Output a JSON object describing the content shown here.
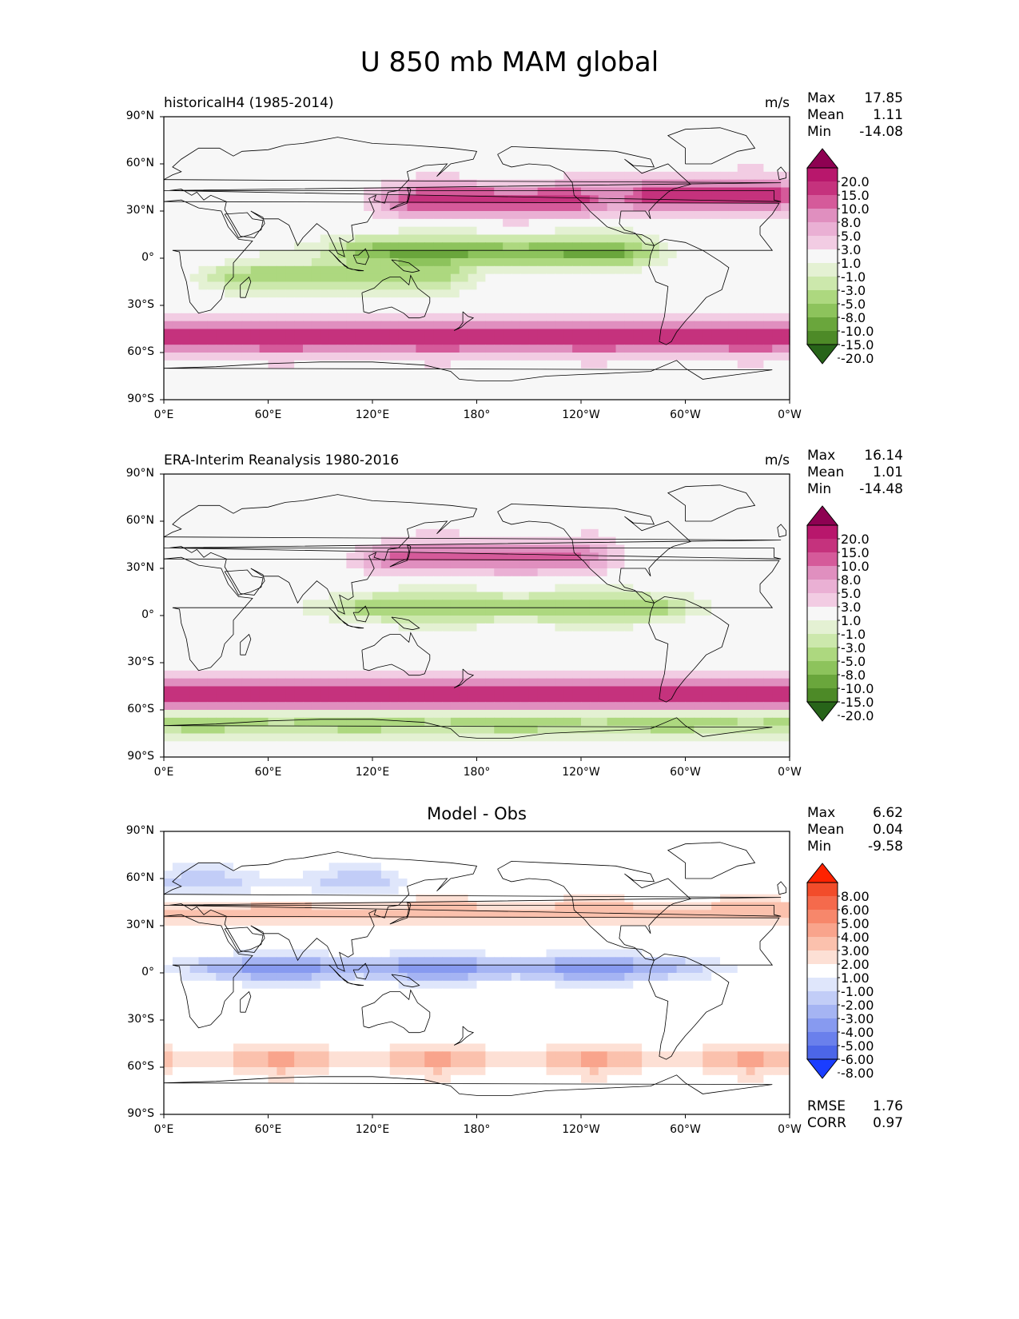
{
  "figure": {
    "title": "U 850 mb MAM global"
  },
  "panels": [
    {
      "id": "model",
      "left_title": "historicalH4 (1985-2014)",
      "center_title": "",
      "units": "m/s",
      "stats": [
        {
          "label": "Max",
          "value": "17.85"
        },
        {
          "label": "Mean",
          "value": "1.11"
        },
        {
          "label": "Min",
          "value": "-14.08"
        }
      ],
      "extra_stats": [],
      "colorbar": {
        "type": "sequential-diverging",
        "levels": [
          "20.0",
          "15.0",
          "10.0",
          "8.0",
          "5.0",
          "3.0",
          "1.0",
          "-1.0",
          "-3.0",
          "-5.0",
          "-8.0",
          "-10.0",
          "-15.0",
          "-20.0"
        ],
        "colors": [
          "#8e0152",
          "#b8176c",
          "#c5327d",
          "#d55a9a",
          "#e08fbf",
          "#eab0d4",
          "#f2cce3",
          "#f7f7f7",
          "#e4f1d3",
          "#cce8ac",
          "#add87f",
          "#8dc35c",
          "#6aa63c",
          "#4d8a27",
          "#276419"
        ]
      }
    },
    {
      "id": "obs",
      "left_title": "ERA-Interim Reanalysis 1980-2016",
      "center_title": "",
      "units": "m/s",
      "stats": [
        {
          "label": "Max",
          "value": "16.14"
        },
        {
          "label": "Mean",
          "value": "1.01"
        },
        {
          "label": "Min",
          "value": "-14.48"
        }
      ],
      "extra_stats": [],
      "colorbar": {
        "type": "sequential-diverging",
        "levels": [
          "20.0",
          "15.0",
          "10.0",
          "8.0",
          "5.0",
          "3.0",
          "1.0",
          "-1.0",
          "-3.0",
          "-5.0",
          "-8.0",
          "-10.0",
          "-15.0",
          "-20.0"
        ],
        "colors": [
          "#8e0152",
          "#b8176c",
          "#c5327d",
          "#d55a9a",
          "#e08fbf",
          "#eab0d4",
          "#f2cce3",
          "#f7f7f7",
          "#e4f1d3",
          "#cce8ac",
          "#add87f",
          "#8dc35c",
          "#6aa63c",
          "#4d8a27",
          "#276419"
        ]
      }
    },
    {
      "id": "diff",
      "left_title": "",
      "center_title": "Model - Obs",
      "units": "",
      "stats": [
        {
          "label": "Max",
          "value": "6.62"
        },
        {
          "label": "Mean",
          "value": "0.04"
        },
        {
          "label": "Min",
          "value": "-9.58"
        }
      ],
      "extra_stats": [
        {
          "label": "RMSE",
          "value": "1.76"
        },
        {
          "label": "CORR",
          "value": "0.97"
        }
      ],
      "colorbar": {
        "type": "diverging",
        "levels": [
          "8.00",
          "6.00",
          "5.00",
          "4.00",
          "3.00",
          "2.00",
          "1.00",
          "-1.00",
          "-2.00",
          "-3.00",
          "-4.00",
          "-5.00",
          "-6.00",
          "-8.00"
        ],
        "colors": [
          "#ff2200",
          "#f24c2a",
          "#f56a4c",
          "#f7876b",
          "#f9a48c",
          "#fbc1ad",
          "#fde0d5",
          "#ffffff",
          "#dfe6fb",
          "#c2cdf7",
          "#a5b4f3",
          "#879af0",
          "#6a80ec",
          "#4c66e8",
          "#1a3dff"
        ]
      }
    }
  ],
  "axes": {
    "y_ticks": [
      "90°N",
      "60°N",
      "30°N",
      "0°",
      "30°S",
      "60°S",
      "90°S"
    ],
    "x_ticks": [
      "0°E",
      "60°E",
      "120°E",
      "180°",
      "120°W",
      "60°W",
      "0°W"
    ]
  },
  "chart_data": [
    {
      "type": "heatmap",
      "title": "historicalH4 (1985-2014)",
      "variable": "U 850 mb MAM",
      "units": "m/s",
      "x_range_deg_east": [
        0,
        360
      ],
      "y_range_deg_lat": [
        -90,
        90
      ],
      "max": 17.85,
      "mean": 1.11,
      "min": -14.08,
      "contour_levels": [
        -20,
        -15,
        -10,
        -8,
        -5,
        -3,
        -1,
        1,
        3,
        5,
        8,
        10,
        15,
        20
      ],
      "features": [
        {
          "name": "southern westerly jet",
          "lat_center": -50,
          "lon_range": [
            0,
            360
          ],
          "value": 15
        },
        {
          "name": "north pacific jet",
          "lat_center": 37,
          "lon_range": [
            150,
            230
          ],
          "value": 12
        },
        {
          "name": "north atlantic jet",
          "lat_center": 40,
          "lon_range": [
            285,
            345
          ],
          "value": 12
        },
        {
          "name": "tropical easterlies pacific",
          "lat_center": 4,
          "lon_range": [
            120,
            260
          ],
          "value": -10
        },
        {
          "name": "southern indian easterlies",
          "lat_center": -12,
          "lon_range": [
            45,
            150
          ],
          "value": -6
        }
      ]
    },
    {
      "type": "heatmap",
      "title": "ERA-Interim Reanalysis 1980-2016",
      "variable": "U 850 mb MAM",
      "units": "m/s",
      "x_range_deg_east": [
        0,
        360
      ],
      "y_range_deg_lat": [
        -90,
        90
      ],
      "max": 16.14,
      "mean": 1.01,
      "min": -14.48,
      "contour_levels": [
        -20,
        -15,
        -10,
        -8,
        -5,
        -3,
        -1,
        1,
        3,
        5,
        8,
        10,
        15,
        20
      ],
      "features": [
        {
          "name": "southern westerly jet",
          "lat_center": -50,
          "lon_range": [
            0,
            360
          ],
          "value": 15
        },
        {
          "name": "north pacific jet",
          "lat_center": 37,
          "lon_range": [
            140,
            230
          ],
          "value": 9
        },
        {
          "name": "tropical easterlies pacific",
          "lat_center": 5,
          "lon_range": [
            120,
            280
          ],
          "value": -7
        },
        {
          "name": "antarctic coastal easterlies",
          "lat_center": -68,
          "lon_range": [
            0,
            360
          ],
          "value": -6
        }
      ]
    },
    {
      "type": "heatmap",
      "title": "Model - Obs",
      "variable": "U 850 mb MAM difference",
      "units": "m/s",
      "x_range_deg_east": [
        0,
        360
      ],
      "y_range_deg_lat": [
        -90,
        90
      ],
      "max": 6.62,
      "mean": 0.04,
      "min": -9.58,
      "rmse": 1.76,
      "corr": 0.97,
      "contour_levels": [
        -8,
        -6,
        -5,
        -4,
        -3,
        -2,
        -1,
        1,
        2,
        3,
        4,
        5,
        6,
        8
      ],
      "features": [
        {
          "name": "equatorial easterly bias",
          "lat_center": 3,
          "lon_range": [
            30,
            290
          ],
          "value": -4
        },
        {
          "name": "southern jet positive bias",
          "lat_center": -55,
          "lon_range": [
            0,
            360
          ],
          "value": 2.5
        },
        {
          "name": "northern midlatitude positive bias",
          "lat_center": 38,
          "lon_range": [
            0,
            360
          ],
          "value": 2.5
        },
        {
          "name": "subpolar negative bias",
          "lat_center": 58,
          "lon_range": [
            0,
            120
          ],
          "value": -2
        }
      ]
    }
  ]
}
